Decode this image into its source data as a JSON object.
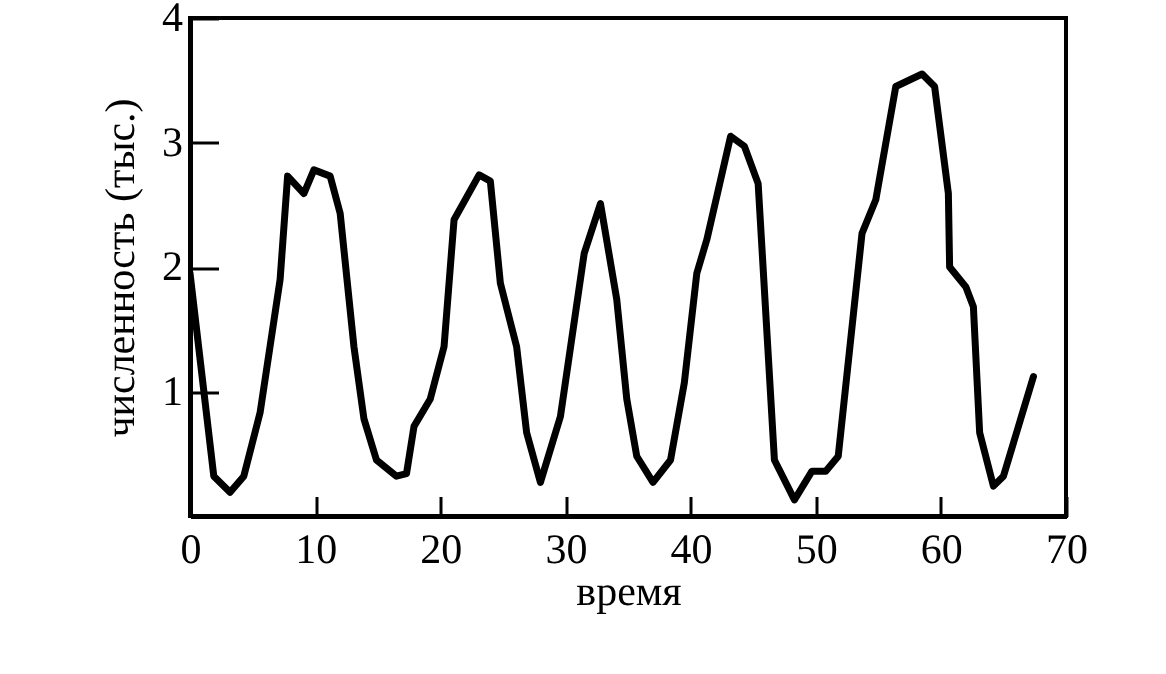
{
  "chart_data": {
    "type": "line",
    "xlabel": "время",
    "ylabel": "численность (тыс.)",
    "xlim": [
      0,
      70
    ],
    "ylim": [
      0,
      4
    ],
    "xticks": [
      0,
      10,
      20,
      30,
      40,
      50,
      60,
      70
    ],
    "yticks": [
      1,
      2,
      3,
      4
    ],
    "marker": "none",
    "line_style": "solid",
    "series": [
      {
        "color": "#000000",
        "x": [
          0,
          1.9,
          3.2,
          4.3,
          5.6,
          7.2,
          7.8,
          9.1,
          9.9,
          11.2,
          12,
          13.1,
          13.9,
          14.9,
          16.5,
          17.3,
          17.9,
          19.2,
          20.3,
          21.1,
          23.1,
          24,
          24.8,
          26.1,
          26.9,
          28,
          29.6,
          31.5,
          32.8,
          34.1,
          34.9,
          35.7,
          37,
          38.4,
          39.5,
          40.5,
          41.3,
          43.2,
          44.3,
          45.4,
          46.7,
          48.3,
          49.7,
          50.8,
          51.8,
          53.7,
          54.8,
          56.4,
          58.5,
          59.5,
          60.6,
          60.7,
          62,
          62.6,
          63.1,
          64.2,
          65,
          67.4
        ],
        "values": [
          1.95,
          0.32,
          0.19,
          0.32,
          0.83,
          1.9,
          2.73,
          2.59,
          2.78,
          2.73,
          2.43,
          1.36,
          0.78,
          0.45,
          0.32,
          0.34,
          0.72,
          0.94,
          1.36,
          2.38,
          2.74,
          2.69,
          1.87,
          1.36,
          0.67,
          0.27,
          0.8,
          2.11,
          2.51,
          1.74,
          0.94,
          0.48,
          0.27,
          0.45,
          1.07,
          1.95,
          2.22,
          3.05,
          2.97,
          2.67,
          0.45,
          0.13,
          0.36,
          0.36,
          0.48,
          2.27,
          2.54,
          3.45,
          3.55,
          3.45,
          2.59,
          2.0,
          1.84,
          1.68,
          0.67,
          0.24,
          0.32,
          1.12
        ]
      }
    ]
  }
}
